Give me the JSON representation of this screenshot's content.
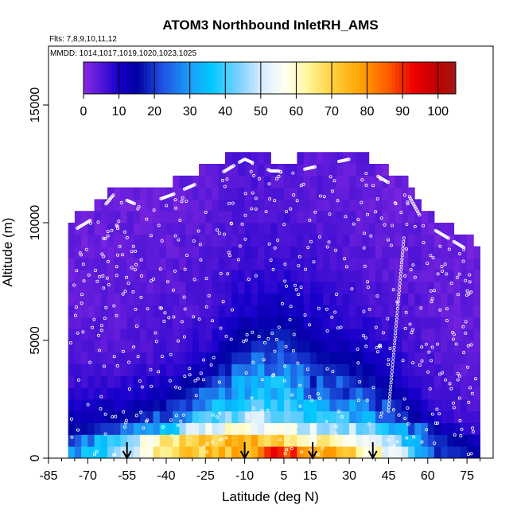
{
  "chart_data": {
    "type": "heatmap",
    "title": "ATOM3 Northbound InletRH_AMS",
    "flights_note": "Flts: 7,8,9,10,11,12",
    "dates_note": "MMDD: 1014,1017,1019,1020,1023,1025",
    "xlabel": "Latitude (deg N)",
    "ylabel": "Altitude (m)",
    "xlim": [
      -85,
      85
    ],
    "ylim": [
      0,
      17500
    ],
    "xticks": [
      "-85",
      "-70",
      "-55",
      "-40",
      "-25",
      "-10",
      "5",
      "15",
      "30",
      "45",
      "60",
      "75"
    ],
    "xtick_values": [
      -85,
      -70,
      -55,
      -40,
      -25,
      -10,
      5,
      15,
      30,
      45,
      60,
      75
    ],
    "yticks": [
      "0",
      "5000",
      "10000",
      "15000"
    ],
    "ytick_values": [
      0,
      5000,
      10000,
      15000
    ],
    "colorbar": {
      "range": [
        0,
        105
      ],
      "tick_labels": [
        "0",
        "10",
        "20",
        "30",
        "40",
        "50",
        "60",
        "70",
        "80",
        "90",
        "100"
      ],
      "tick_values": [
        0,
        10,
        20,
        30,
        40,
        50,
        60,
        70,
        80,
        90,
        100
      ]
    },
    "bin_width_deg": 2.5,
    "bin_height_m": 500,
    "ceiling_by_lat": [
      {
        "lat": -75,
        "alt": 10000
      },
      {
        "lat": -67.5,
        "alt": 10500
      },
      {
        "lat": -60,
        "alt": 11500
      },
      {
        "lat": -50,
        "alt": 11000
      },
      {
        "lat": -37.5,
        "alt": 11500
      },
      {
        "lat": -27.5,
        "alt": 12000
      },
      {
        "lat": -17.5,
        "alt": 12500
      },
      {
        "lat": -10,
        "alt": 13000
      },
      {
        "lat": 0,
        "alt": 12500
      },
      {
        "lat": 10,
        "alt": 12500
      },
      {
        "lat": 30,
        "alt": 13000
      },
      {
        "lat": 45,
        "alt": 12000
      },
      {
        "lat": 52.5,
        "alt": 11500
      },
      {
        "lat": 57.5,
        "alt": 10500
      },
      {
        "lat": 62.5,
        "alt": 10000
      },
      {
        "lat": 70,
        "alt": 9500
      },
      {
        "lat": 77.5,
        "alt": 9000
      }
    ],
    "rh_levels": [
      {
        "alt": 250,
        "values": [
          {
            "lat": -75,
            "rh": 30
          },
          {
            "lat": -55,
            "rh": 45
          },
          {
            "lat": -40,
            "rh": 70
          },
          {
            "lat": -25,
            "rh": 72
          },
          {
            "lat": -10,
            "rh": 76
          },
          {
            "lat": 5,
            "rh": 92
          },
          {
            "lat": 15,
            "rh": 80
          },
          {
            "lat": 30,
            "rh": 70
          },
          {
            "lat": 45,
            "rh": 55
          },
          {
            "lat": 55,
            "rh": 40
          },
          {
            "lat": 65,
            "rh": 20
          },
          {
            "lat": 77.5,
            "rh": 15
          }
        ]
      },
      {
        "alt": 750,
        "values": [
          {
            "lat": -75,
            "rh": 22
          },
          {
            "lat": -55,
            "rh": 45
          },
          {
            "lat": -40,
            "rh": 65
          },
          {
            "lat": -25,
            "rh": 72
          },
          {
            "lat": -10,
            "rh": 75
          },
          {
            "lat": 5,
            "rh": 70
          },
          {
            "lat": 15,
            "rh": 62
          },
          {
            "lat": 30,
            "rh": 60
          },
          {
            "lat": 45,
            "rh": 45
          },
          {
            "lat": 55,
            "rh": 32
          },
          {
            "lat": 65,
            "rh": 18
          },
          {
            "lat": 77.5,
            "rh": 12
          }
        ]
      },
      {
        "alt": 1250,
        "values": [
          {
            "lat": -75,
            "rh": 15
          },
          {
            "lat": -55,
            "rh": 22
          },
          {
            "lat": -40,
            "rh": 38
          },
          {
            "lat": -25,
            "rh": 52
          },
          {
            "lat": -10,
            "rh": 58
          },
          {
            "lat": 5,
            "rh": 55
          },
          {
            "lat": 15,
            "rh": 50
          },
          {
            "lat": 30,
            "rh": 48
          },
          {
            "lat": 45,
            "rh": 35
          },
          {
            "lat": 55,
            "rh": 25
          },
          {
            "lat": 65,
            "rh": 12
          },
          {
            "lat": 77.5,
            "rh": 8
          }
        ]
      },
      {
        "alt": 1750,
        "values": [
          {
            "lat": -75,
            "rh": 12
          },
          {
            "lat": -55,
            "rh": 15
          },
          {
            "lat": -40,
            "rh": 22
          },
          {
            "lat": -25,
            "rh": 38
          },
          {
            "lat": -10,
            "rh": 48
          },
          {
            "lat": 5,
            "rh": 45
          },
          {
            "lat": 15,
            "rh": 40
          },
          {
            "lat": 30,
            "rh": 35
          },
          {
            "lat": 45,
            "rh": 25
          },
          {
            "lat": 55,
            "rh": 15
          },
          {
            "lat": 65,
            "rh": 8
          },
          {
            "lat": 77.5,
            "rh": 6
          }
        ]
      },
      {
        "alt": 2500,
        "values": [
          {
            "lat": -75,
            "rh": 9
          },
          {
            "lat": -55,
            "rh": 10
          },
          {
            "lat": -40,
            "rh": 14
          },
          {
            "lat": -25,
            "rh": 25
          },
          {
            "lat": -10,
            "rh": 35
          },
          {
            "lat": 5,
            "rh": 38
          },
          {
            "lat": 15,
            "rh": 28
          },
          {
            "lat": 30,
            "rh": 25
          },
          {
            "lat": 45,
            "rh": 18
          },
          {
            "lat": 55,
            "rh": 10
          },
          {
            "lat": 65,
            "rh": 6
          },
          {
            "lat": 77.5,
            "rh": 5
          }
        ]
      },
      {
        "alt": 3500,
        "values": [
          {
            "lat": -75,
            "rh": 6
          },
          {
            "lat": -55,
            "rh": 7
          },
          {
            "lat": -40,
            "rh": 9
          },
          {
            "lat": -25,
            "rh": 14
          },
          {
            "lat": -10,
            "rh": 28
          },
          {
            "lat": 5,
            "rh": 32
          },
          {
            "lat": 15,
            "rh": 20
          },
          {
            "lat": 30,
            "rh": 18
          },
          {
            "lat": 45,
            "rh": 12
          },
          {
            "lat": 55,
            "rh": 8
          },
          {
            "lat": 65,
            "rh": 5
          },
          {
            "lat": 77.5,
            "rh": 4
          }
        ]
      },
      {
        "alt": 4500,
        "values": [
          {
            "lat": -75,
            "rh": 5
          },
          {
            "lat": -55,
            "rh": 5
          },
          {
            "lat": -40,
            "rh": 6
          },
          {
            "lat": -25,
            "rh": 9
          },
          {
            "lat": -10,
            "rh": 18
          },
          {
            "lat": 5,
            "rh": 22
          },
          {
            "lat": 15,
            "rh": 16
          },
          {
            "lat": 30,
            "rh": 13
          },
          {
            "lat": 45,
            "rh": 9
          },
          {
            "lat": 55,
            "rh": 6
          },
          {
            "lat": 65,
            "rh": 4
          },
          {
            "lat": 77.5,
            "rh": 4
          }
        ]
      },
      {
        "alt": 6000,
        "values": [
          {
            "lat": -75,
            "rh": 4
          },
          {
            "lat": -55,
            "rh": 4
          },
          {
            "lat": -40,
            "rh": 5
          },
          {
            "lat": -25,
            "rh": 6
          },
          {
            "lat": -10,
            "rh": 11
          },
          {
            "lat": 5,
            "rh": 13
          },
          {
            "lat": 15,
            "rh": 10
          },
          {
            "lat": 30,
            "rh": 8
          },
          {
            "lat": 45,
            "rh": 6
          },
          {
            "lat": 55,
            "rh": 5
          },
          {
            "lat": 65,
            "rh": 4
          },
          {
            "lat": 77.5,
            "rh": 3
          }
        ]
      },
      {
        "alt": 8000,
        "values": [
          {
            "lat": -75,
            "rh": 3
          },
          {
            "lat": -55,
            "rh": 4
          },
          {
            "lat": -40,
            "rh": 4
          },
          {
            "lat": -25,
            "rh": 5
          },
          {
            "lat": -10,
            "rh": 7
          },
          {
            "lat": 5,
            "rh": 8
          },
          {
            "lat": 15,
            "rh": 7
          },
          {
            "lat": 30,
            "rh": 5
          },
          {
            "lat": 45,
            "rh": 4
          },
          {
            "lat": 55,
            "rh": 4
          },
          {
            "lat": 65,
            "rh": 3
          },
          {
            "lat": 77.5,
            "rh": 3
          }
        ]
      },
      {
        "alt": 11000,
        "values": [
          {
            "lat": -75,
            "rh": 3
          },
          {
            "lat": -55,
            "rh": 3
          },
          {
            "lat": -40,
            "rh": 3
          },
          {
            "lat": -25,
            "rh": 4
          },
          {
            "lat": -10,
            "rh": 5
          },
          {
            "lat": 5,
            "rh": 5
          },
          {
            "lat": 15,
            "rh": 4
          },
          {
            "lat": 30,
            "rh": 4
          },
          {
            "lat": 45,
            "rh": 3
          },
          {
            "lat": 55,
            "rh": 3
          },
          {
            "lat": 65,
            "rh": 3
          },
          {
            "lat": 77.5,
            "rh": 3
          }
        ]
      }
    ],
    "takeoff_markers_lat": [
      -55,
      -10,
      16,
      39
    ]
  },
  "colors": {
    "colorbar_stops": [
      {
        "v": 0,
        "c": "#8a2be2"
      },
      {
        "v": 10,
        "c": "#1800cc"
      },
      {
        "v": 15,
        "c": "#0000a0"
      },
      {
        "v": 22,
        "c": "#1e50e0"
      },
      {
        "v": 30,
        "c": "#1c9cf8"
      },
      {
        "v": 36,
        "c": "#00c8ff"
      },
      {
        "v": 44,
        "c": "#7fd0ff"
      },
      {
        "v": 50,
        "c": "#d6ecff"
      },
      {
        "v": 57,
        "c": "#fffff0"
      },
      {
        "v": 63,
        "c": "#fff7a0"
      },
      {
        "v": 70,
        "c": "#ffd040"
      },
      {
        "v": 78,
        "c": "#ffa500"
      },
      {
        "v": 86,
        "c": "#ff5a00"
      },
      {
        "v": 93,
        "c": "#ee0000"
      },
      {
        "v": 100,
        "c": "#c00000"
      },
      {
        "v": 105,
        "c": "#a01818"
      }
    ],
    "axis": "#000000",
    "track_points": "#ffffff",
    "arrow": "#000000"
  }
}
